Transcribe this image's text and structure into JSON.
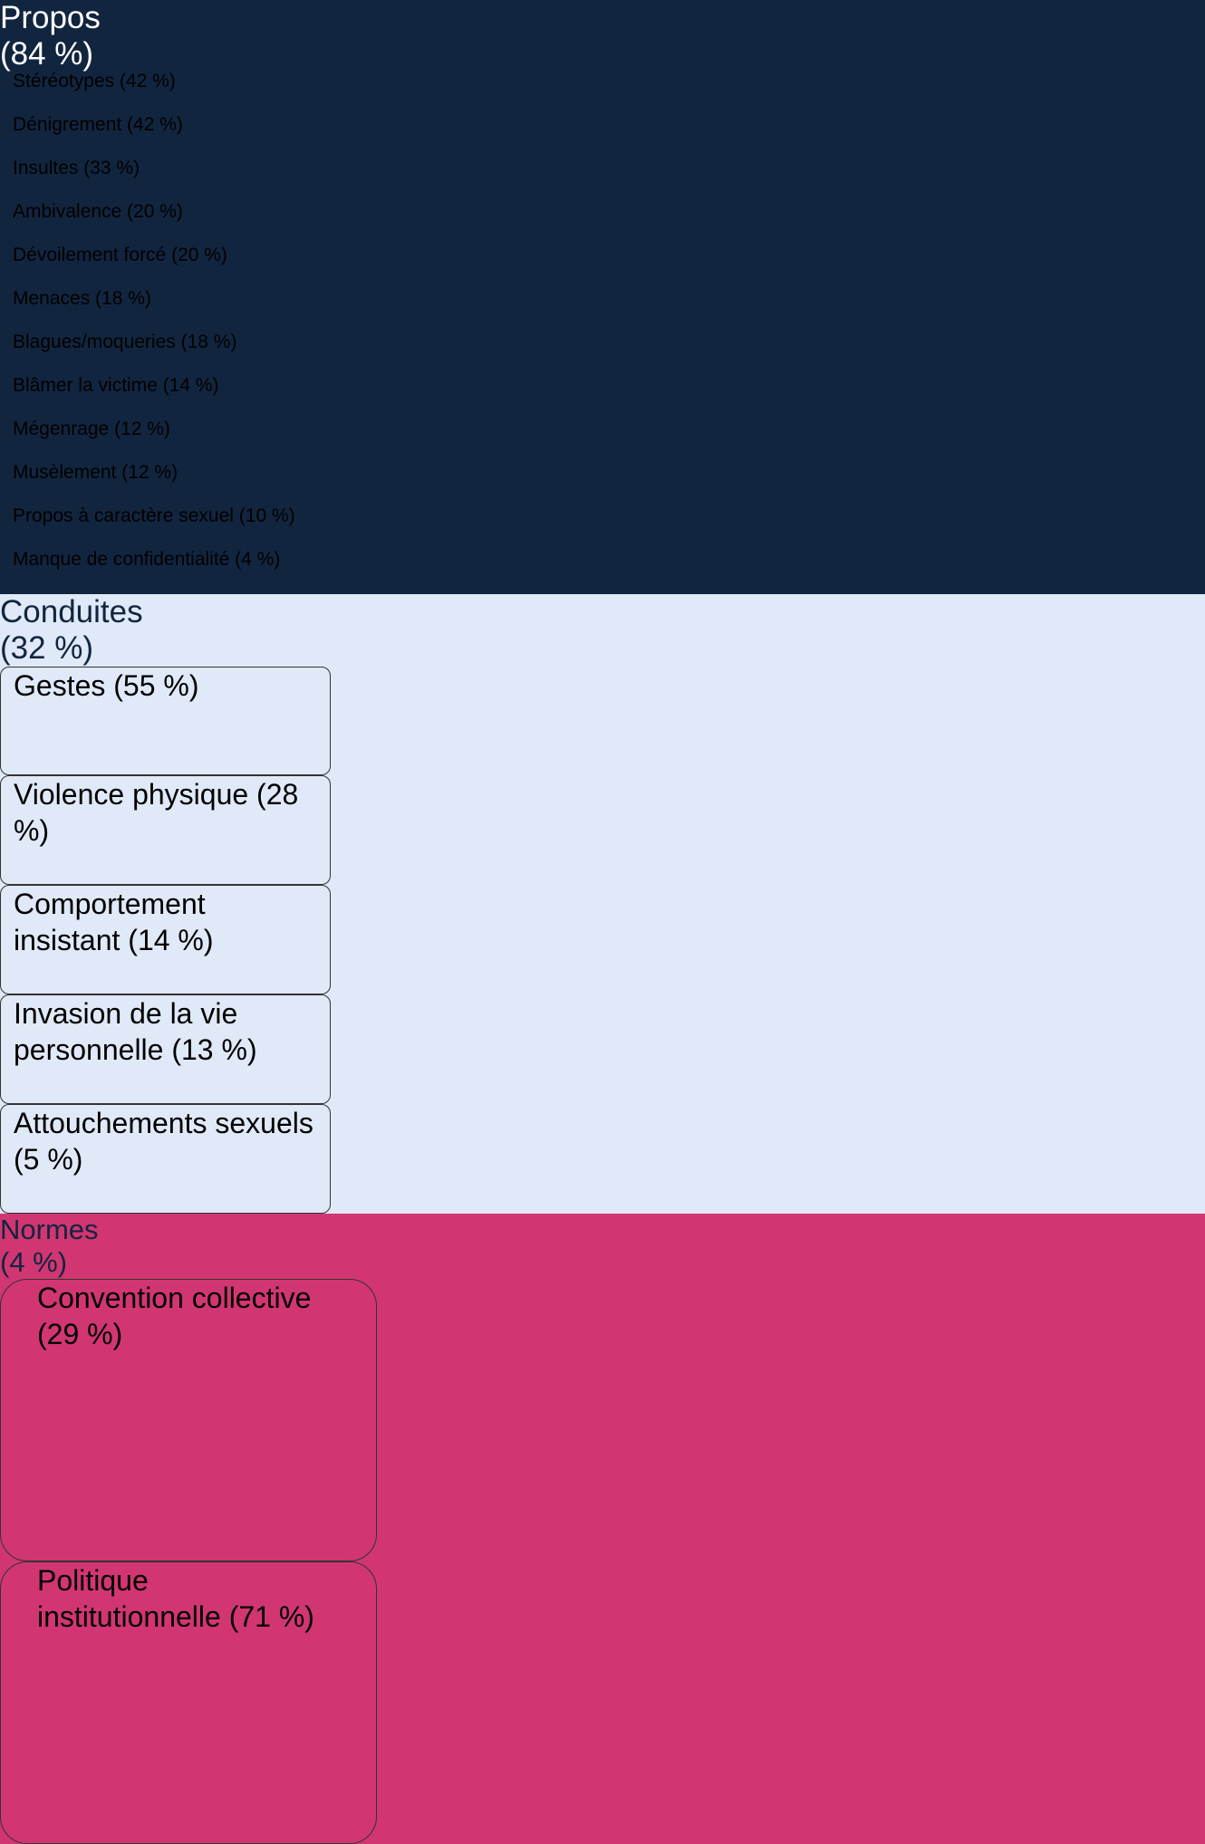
{
  "columns": [
    {
      "title": "Propos",
      "share": "(84 %)",
      "items": [
        "Stéréotypes (42 %)",
        "Dénigrement (42 %)",
        "Insultes (33 %)",
        "Ambivalence (20 %)",
        "Dévoilement forcé (20 %)",
        "Menaces (18 %)",
        "Blagues/moqueries (18 %)",
        "Blâmer la victime (14 %)",
        "Mégenrage (12 %)",
        "Musèlement (12 %)",
        "Propos à caractère sexuel (10 %)",
        "Manque de confidentialité (4 %)"
      ]
    },
    {
      "title": "Conduites",
      "share": "(32 %)",
      "items": [
        "Gestes (55 %)",
        "Violence physique (28 %)",
        "Comportement insistant (14 %)",
        "Invasion de la vie personnelle (13 %)",
        "Attouchements sexuels (5 %)"
      ]
    },
    {
      "title": "Normes",
      "share": "(4 %)",
      "items": [
        "Convention collective (29 %)",
        "Politique institutionnelle (71 %)"
      ]
    }
  ]
}
